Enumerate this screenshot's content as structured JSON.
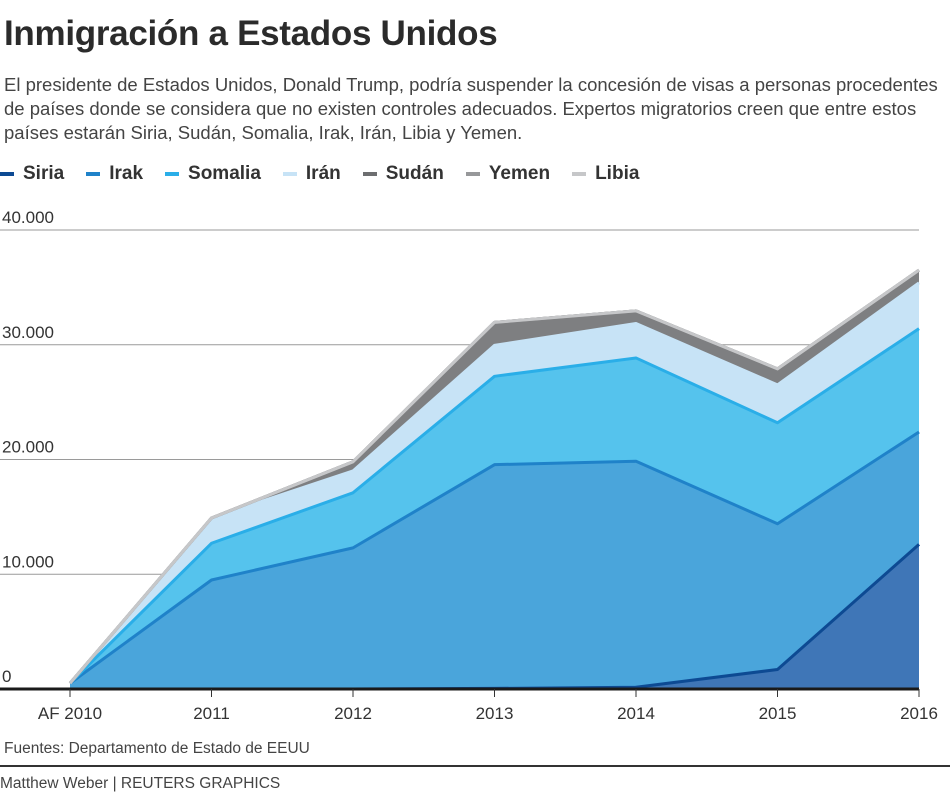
{
  "title": "Inmigración a Estados Unidos",
  "subtitle": "El presidente de Estados Unidos, Donald Trump, podría suspender la concesión de visas a personas procedentes de países donde se considera que no existen controles adecuados. Expertos migratorios creen que entre estos países estarán Siria, Sudán, Somalia, Irak, Irán, Libia y Yemen.",
  "source": "Fuentes: Departamento de Estado de EEUU",
  "credit": "Matthew Weber | REUTERS GRAPHICS",
  "chart_data": {
    "type": "area",
    "stacked": true,
    "categories": [
      "AF 2010",
      "2011",
      "2012",
      "2013",
      "2014",
      "2015",
      "2016"
    ],
    "ylim": [
      0,
      40000
    ],
    "yticks": [
      0,
      10000,
      20000,
      30000,
      40000
    ],
    "ytick_labels": [
      "0",
      "10.000",
      "20.000",
      "30.000",
      "40.000"
    ],
    "grid": true,
    "legend_position": "top-left",
    "series": [
      {
        "name": "Siria",
        "color": "#0d4a93",
        "fill": "#3f76b7",
        "values": [
          0,
          0,
          0,
          50,
          150,
          1700,
          12600
        ]
      },
      {
        "name": "Irak",
        "color": "#1f82c9",
        "fill": "#4aa5db",
        "values": [
          500,
          9500,
          12300,
          19500,
          19700,
          12700,
          9800
        ]
      },
      {
        "name": "Somalia",
        "color": "#2aaee8",
        "fill": "#55c3ed",
        "values": [
          0,
          3200,
          4800,
          7700,
          9000,
          8800,
          9000
        ]
      },
      {
        "name": "Irán",
        "color": "#c7e3f6",
        "fill": "#c7e3f6",
        "values": [
          0,
          2200,
          1900,
          2700,
          3000,
          3300,
          4000
        ]
      },
      {
        "name": "Sudán",
        "color": "#6d6e70",
        "fill": "#7e7f81",
        "values": [
          0,
          0,
          800,
          2000,
          1100,
          1400,
          1100
        ]
      },
      {
        "name": "Yemen",
        "color": "#97989a",
        "fill": "#97989a",
        "values": [
          0,
          0,
          0,
          0,
          0,
          0,
          0
        ]
      },
      {
        "name": "Libia",
        "color": "#c6c7c9",
        "fill": "#c6c7c9",
        "values": [
          0,
          0,
          0,
          0,
          0,
          0,
          0
        ]
      }
    ]
  }
}
